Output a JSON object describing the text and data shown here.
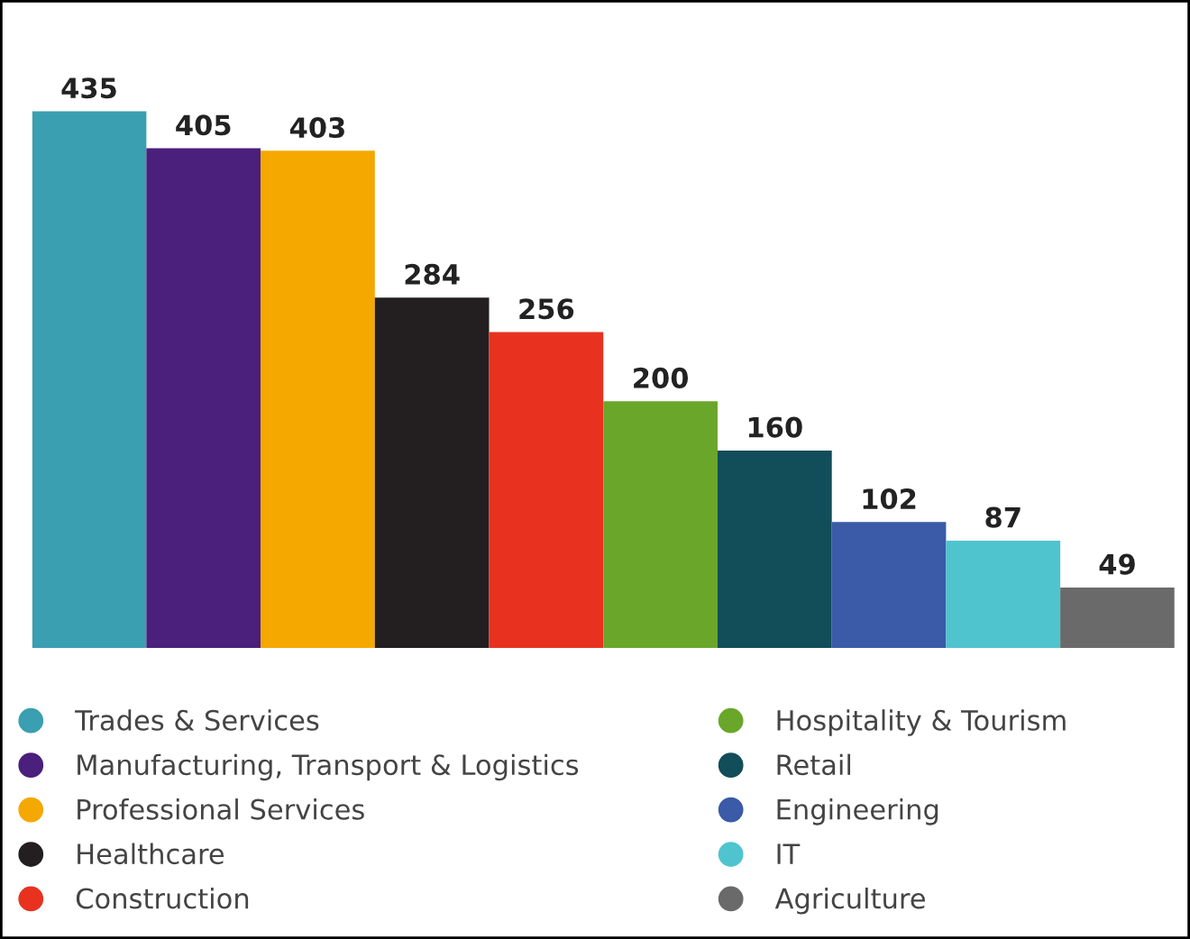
{
  "chart_data": {
    "type": "bar",
    "categories": [
      null
    ],
    "series": [
      {
        "name": "Trades & Services",
        "color": "#3a9fb0",
        "values": [
          435
        ]
      },
      {
        "name": "Manufacturing, Transport & Logistics",
        "color": "#4b1f7c",
        "values": [
          405
        ]
      },
      {
        "name": "Professional Services",
        "color": "#f5a800",
        "values": [
          403
        ]
      },
      {
        "name": "Healthcare",
        "color": "#231f20",
        "values": [
          284
        ]
      },
      {
        "name": "Construction",
        "color": "#e8321f",
        "values": [
          256
        ]
      },
      {
        "name": "Hospitality & Tourism",
        "color": "#6aa62a",
        "values": [
          200
        ]
      },
      {
        "name": "Retail",
        "color": "#124d5a",
        "values": [
          160
        ]
      },
      {
        "name": "Engineering",
        "color": "#3b5aa8",
        "values": [
          102
        ]
      },
      {
        "name": "IT",
        "color": "#4fc4cf",
        "values": [
          87
        ]
      },
      {
        "name": "Agriculture",
        "color": "#6a6a6a",
        "values": [
          49
        ]
      }
    ],
    "data_labels": true,
    "legend": "bottom"
  }
}
